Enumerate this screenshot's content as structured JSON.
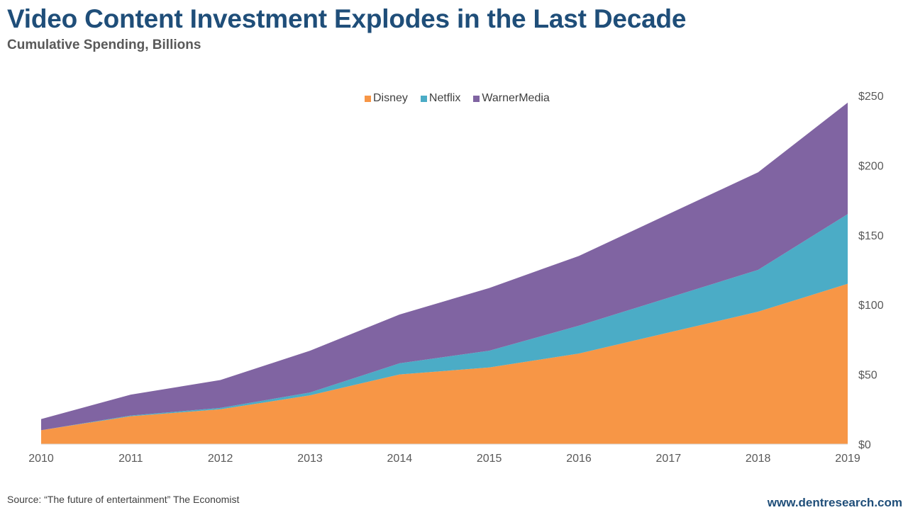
{
  "header": {
    "title": "Video Content Investment Explodes in the Last Decade",
    "subtitle": "Cumulative Spending, Billions"
  },
  "footer": {
    "source": "Source: “The future of entertainment” The Economist",
    "site": "www.dentresearch.com"
  },
  "colors": {
    "disney": "#f79646",
    "netflix": "#4bacc6",
    "warnermedia": "#8064a2",
    "title": "#1f4e79",
    "axis_text": "#595959"
  },
  "chart_data": {
    "type": "area",
    "stacked": true,
    "x": [
      "2010",
      "2011",
      "2012",
      "2013",
      "2014",
      "2015",
      "2016",
      "2017",
      "2018",
      "2019"
    ],
    "series": [
      {
        "name": "Disney",
        "values": [
          10,
          20,
          25,
          35,
          50,
          55,
          65,
          80,
          95,
          115
        ]
      },
      {
        "name": "Netflix",
        "values": [
          0,
          0.5,
          1,
          2,
          8,
          12,
          20,
          25,
          30,
          50
        ]
      },
      {
        "name": "WarnerMedia",
        "values": [
          8,
          15,
          20,
          30,
          35,
          45,
          50,
          60,
          70,
          80
        ]
      }
    ],
    "ylim": [
      0,
      250
    ],
    "yticks": [
      0,
      50,
      100,
      150,
      200,
      250
    ],
    "ytick_labels": [
      "$0",
      "$50",
      "$100",
      "$150",
      "$200",
      "$250"
    ],
    "y_axis_side": "right",
    "legend_position": "top-center",
    "grid": false
  }
}
